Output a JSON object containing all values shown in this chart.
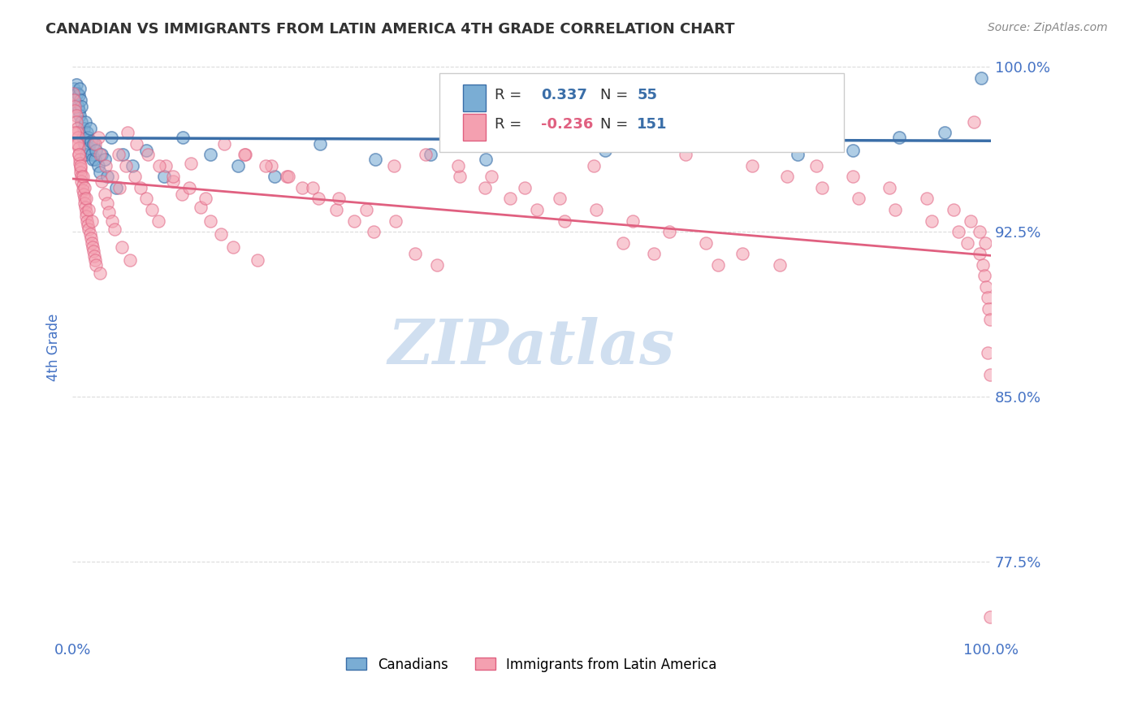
{
  "title": "CANADIAN VS IMMIGRANTS FROM LATIN AMERICA 4TH GRADE CORRELATION CHART",
  "source": "Source: ZipAtlas.com",
  "xlabel": "",
  "ylabel": "4th Grade",
  "xlim": [
    0.0,
    1.0
  ],
  "ylim": [
    0.74,
    1.005
  ],
  "yticks": [
    0.775,
    0.85,
    0.925,
    1.0
  ],
  "ytick_labels": [
    "77.5%",
    "85.0%",
    "92.5%",
    "100.0%"
  ],
  "xtick_labels": [
    "0.0%",
    "100.0%"
  ],
  "r_canadian": 0.337,
  "n_canadian": 55,
  "r_latin": -0.236,
  "n_latin": 151,
  "blue_color": "#7aadd4",
  "blue_line_color": "#3a6ea8",
  "pink_color": "#f4a0b0",
  "pink_line_color": "#e06080",
  "legend_label_canadian": "Canadians",
  "legend_label_latin": "Immigrants from Latin America",
  "title_color": "#333333",
  "axis_label_color": "#4472c4",
  "tick_label_color": "#4472c4",
  "watermark_text": "ZIPatlas",
  "watermark_color": "#d0dff0",
  "background_color": "#ffffff",
  "blue_scatter_x": [
    0.002,
    0.003,
    0.004,
    0.005,
    0.006,
    0.007,
    0.007,
    0.008,
    0.008,
    0.009,
    0.01,
    0.01,
    0.011,
    0.012,
    0.013,
    0.014,
    0.015,
    0.016,
    0.017,
    0.018,
    0.019,
    0.02,
    0.021,
    0.022,
    0.023,
    0.025,
    0.026,
    0.028,
    0.03,
    0.032,
    0.035,
    0.038,
    0.042,
    0.048,
    0.055,
    0.065,
    0.08,
    0.1,
    0.12,
    0.15,
    0.18,
    0.22,
    0.27,
    0.33,
    0.39,
    0.45,
    0.52,
    0.58,
    0.65,
    0.72,
    0.79,
    0.85,
    0.9,
    0.95,
    0.99
  ],
  "blue_scatter_y": [
    0.99,
    0.985,
    0.992,
    0.988,
    0.982,
    0.987,
    0.98,
    0.99,
    0.978,
    0.985,
    0.975,
    0.982,
    0.968,
    0.972,
    0.965,
    0.975,
    0.96,
    0.97,
    0.968,
    0.963,
    0.972,
    0.966,
    0.96,
    0.958,
    0.965,
    0.958,
    0.962,
    0.955,
    0.952,
    0.96,
    0.958,
    0.95,
    0.968,
    0.945,
    0.96,
    0.955,
    0.962,
    0.95,
    0.968,
    0.96,
    0.955,
    0.95,
    0.965,
    0.958,
    0.96,
    0.958,
    0.965,
    0.962,
    0.968,
    0.97,
    0.96,
    0.962,
    0.968,
    0.97,
    0.995
  ],
  "pink_scatter_x": [
    0.001,
    0.002,
    0.003,
    0.003,
    0.004,
    0.004,
    0.005,
    0.005,
    0.006,
    0.006,
    0.007,
    0.007,
    0.008,
    0.008,
    0.009,
    0.009,
    0.01,
    0.01,
    0.011,
    0.011,
    0.012,
    0.013,
    0.013,
    0.014,
    0.015,
    0.015,
    0.016,
    0.017,
    0.018,
    0.019,
    0.02,
    0.021,
    0.022,
    0.023,
    0.024,
    0.025,
    0.026,
    0.028,
    0.03,
    0.032,
    0.035,
    0.038,
    0.04,
    0.043,
    0.046,
    0.05,
    0.054,
    0.058,
    0.063,
    0.068,
    0.074,
    0.08,
    0.087,
    0.094,
    0.102,
    0.11,
    0.119,
    0.129,
    0.14,
    0.15,
    0.162,
    0.175,
    0.188,
    0.202,
    0.217,
    0.233,
    0.25,
    0.268,
    0.287,
    0.307,
    0.328,
    0.35,
    0.373,
    0.397,
    0.422,
    0.449,
    0.477,
    0.506,
    0.536,
    0.568,
    0.6,
    0.633,
    0.668,
    0.703,
    0.74,
    0.778,
    0.816,
    0.856,
    0.896,
    0.936,
    0.965,
    0.975,
    0.982,
    0.988,
    0.991,
    0.993,
    0.995,
    0.997,
    0.998,
    0.999,
    0.003,
    0.005,
    0.007,
    0.009,
    0.011,
    0.013,
    0.015,
    0.018,
    0.021,
    0.025,
    0.03,
    0.036,
    0.043,
    0.051,
    0.06,
    0.07,
    0.082,
    0.095,
    0.11,
    0.127,
    0.145,
    0.165,
    0.187,
    0.21,
    0.235,
    0.262,
    0.29,
    0.32,
    0.352,
    0.385,
    0.42,
    0.456,
    0.493,
    0.531,
    0.57,
    0.61,
    0.65,
    0.69,
    0.73,
    0.77,
    0.81,
    0.85,
    0.89,
    0.93,
    0.96,
    0.978,
    0.988,
    0.994,
    0.997,
    0.999,
    0.999
  ],
  "pink_scatter_y": [
    0.988,
    0.985,
    0.982,
    0.98,
    0.978,
    0.975,
    0.972,
    0.97,
    0.968,
    0.965,
    0.963,
    0.96,
    0.958,
    0.956,
    0.954,
    0.952,
    0.95,
    0.948,
    0.946,
    0.944,
    0.942,
    0.94,
    0.938,
    0.936,
    0.934,
    0.932,
    0.93,
    0.928,
    0.926,
    0.924,
    0.922,
    0.92,
    0.918,
    0.916,
    0.914,
    0.912,
    0.91,
    0.968,
    0.906,
    0.948,
    0.942,
    0.938,
    0.934,
    0.93,
    0.926,
    0.96,
    0.918,
    0.955,
    0.912,
    0.95,
    0.945,
    0.94,
    0.935,
    0.93,
    0.955,
    0.948,
    0.942,
    0.956,
    0.936,
    0.93,
    0.924,
    0.918,
    0.96,
    0.912,
    0.955,
    0.95,
    0.945,
    0.94,
    0.935,
    0.93,
    0.925,
    0.955,
    0.915,
    0.91,
    0.95,
    0.945,
    0.94,
    0.935,
    0.93,
    0.955,
    0.92,
    0.915,
    0.96,
    0.91,
    0.955,
    0.95,
    0.945,
    0.94,
    0.935,
    0.93,
    0.925,
    0.92,
    0.975,
    0.915,
    0.91,
    0.905,
    0.9,
    0.895,
    0.89,
    0.885,
    0.97,
    0.965,
    0.96,
    0.955,
    0.95,
    0.945,
    0.94,
    0.935,
    0.93,
    0.965,
    0.96,
    0.955,
    0.95,
    0.945,
    0.97,
    0.965,
    0.96,
    0.955,
    0.95,
    0.945,
    0.94,
    0.965,
    0.96,
    0.955,
    0.95,
    0.945,
    0.94,
    0.935,
    0.93,
    0.96,
    0.955,
    0.95,
    0.945,
    0.94,
    0.935,
    0.93,
    0.925,
    0.92,
    0.915,
    0.91,
    0.955,
    0.95,
    0.945,
    0.94,
    0.935,
    0.93,
    0.925,
    0.92,
    0.87,
    0.86,
    0.75
  ]
}
